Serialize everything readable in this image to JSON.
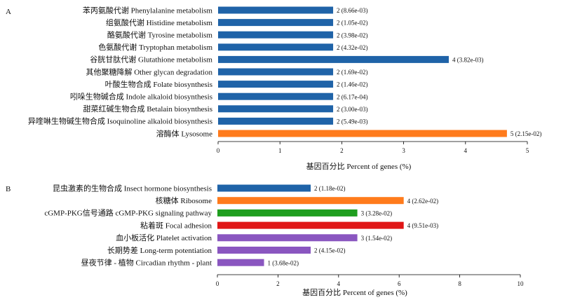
{
  "chart_data": [
    {
      "type": "bar",
      "orientation": "horizontal",
      "panel_label": "A",
      "xlabel": "基因百分比 Percent of genes (%)",
      "xlim": [
        0,
        5
      ],
      "xticks": [
        "0",
        "1",
        "2",
        "3",
        "4",
        "5"
      ],
      "categories": [
        "苯丙氨酸代谢 Phenylalanine metabolism",
        "组氨酸代谢 Histidine metabolism",
        "酪氨酸代谢 Tyrosine metabolism",
        "色氨酸代谢 Tryptophan metabolism",
        "谷胱甘肽代谢 Glutathione metabolism",
        "其他聚糖降解 Other glycan degradation",
        "叶酸生物合成 Folate biosynthesis",
        "吲哚生物碱合成 Indole alkaloid biosynthesis",
        "甜菜红碱生物合成 Betalain biosynthesis",
        "异喹啉生物碱生物合成 Isoquinoline alkaloid biosynthesis",
        "溶酶体 Lysosome"
      ],
      "values": [
        1.86,
        1.86,
        1.86,
        1.86,
        3.73,
        1.86,
        1.86,
        1.86,
        1.86,
        1.86,
        4.67
      ],
      "data_labels": [
        "2 (8.66e-03)",
        "2 (1.05e-02)",
        "2 (3.98e-02)",
        "2 (4.32e-02)",
        "4 (3.82e-03)",
        "2 (1.69e-02)",
        "2 (1.46e-02)",
        "2 (6.17e-04)",
        "2 (3.00e-03)",
        "2 (5.49e-03)",
        "5 (2.15e-02)"
      ],
      "colors": [
        "#1f63a8",
        "#1f63a8",
        "#1f63a8",
        "#1f63a8",
        "#1f63a8",
        "#1f63a8",
        "#1f63a8",
        "#1f63a8",
        "#1f63a8",
        "#1f63a8",
        "#ff7b1c"
      ],
      "grid": false
    },
    {
      "type": "bar",
      "orientation": "horizontal",
      "panel_label": "B",
      "xlabel": "基因百分比 Percent of genes (%)",
      "xlim": [
        0,
        10
      ],
      "xticks": [
        "0",
        "2",
        "4",
        "6",
        "8",
        "10"
      ],
      "categories": [
        "昆虫激素的生物合成 Insect hormone biosynthesis",
        "核糖体 Ribosome",
        "cGMP-PKG信号通路 cGMP-PKG signaling pathway",
        "粘着斑 Focal adhesion",
        "血小板活化 Platelet activation",
        "长期势差 Long-term potentiation",
        "昼夜节律 - 植物 Circadian rhythm - plant"
      ],
      "values": [
        3.08,
        6.15,
        4.62,
        6.15,
        4.62,
        3.08,
        1.54
      ],
      "data_labels": [
        "2 (1.18e-02)",
        "4 (2.62e-02)",
        "3 (3.28e-02)",
        "4 (9.51e-03)",
        "3 (1.54e-02)",
        "2 (4.15e-02)",
        "1 (3.68e-02)"
      ],
      "colors": [
        "#1f63a8",
        "#ff7b1c",
        "#1f9e1f",
        "#e01616",
        "#8a56c0",
        "#8a56c0",
        "#8a56c0"
      ],
      "grid": false
    }
  ]
}
